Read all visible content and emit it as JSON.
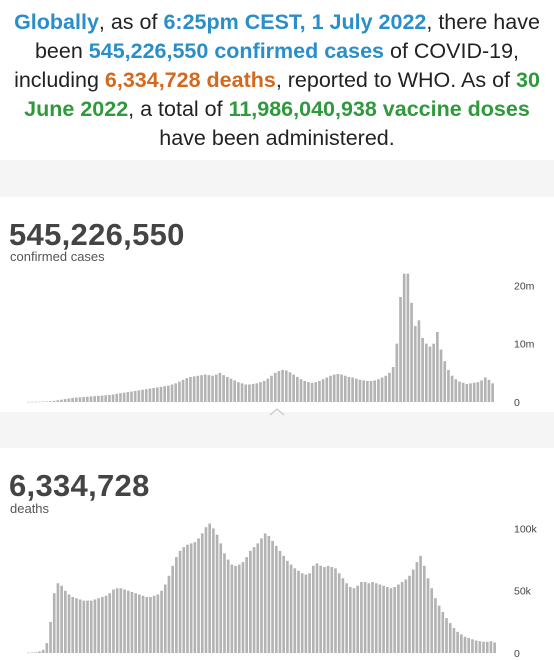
{
  "summary": {
    "t1": "Globally",
    "t2": ", as of ",
    "t3": "6:25pm CEST, 1 July 2022",
    "t4": ", there have been ",
    "t5": "545,226,550 confirmed cases",
    "t6": " of COVID-19, including ",
    "t7": "6,334,728 deaths",
    "t8": ", reported to WHO. As of ",
    "t9": "30 June 2022",
    "t10": ", a total of ",
    "t11": "11,986,040,938 vaccine doses",
    "t12": " have been administered."
  },
  "colors": {
    "blue": "#2a8ec9",
    "orange": "#d2691e",
    "green": "#2e9a3c",
    "bar": "#b3b3b3"
  },
  "chart_data": [
    {
      "type": "bar",
      "title": "545,226,550",
      "subtitle": "confirmed cases",
      "ylim": [
        0,
        24000000
      ],
      "y_ticks": [
        {
          "value": 0,
          "label": "0"
        },
        {
          "value": 10000000,
          "label": "10m"
        },
        {
          "value": 20000000,
          "label": "20m"
        }
      ],
      "values": [
        20000,
        30000,
        40000,
        60000,
        80000,
        100000,
        150000,
        200000,
        300000,
        400000,
        500000,
        600000,
        700000,
        750000,
        800000,
        850000,
        900000,
        950000,
        1000000,
        1050000,
        1100000,
        1150000,
        1200000,
        1300000,
        1400000,
        1500000,
        1600000,
        1700000,
        1800000,
        1900000,
        2000000,
        2100000,
        2200000,
        2300000,
        2400000,
        2500000,
        2600000,
        2700000,
        2800000,
        3000000,
        3200000,
        3500000,
        3800000,
        4100000,
        4300000,
        4400000,
        4500000,
        4600000,
        4700000,
        4600000,
        4500000,
        4700000,
        5000000,
        4600000,
        4300000,
        4000000,
        3700000,
        3400000,
        3200000,
        3000000,
        3000000,
        3100000,
        3200000,
        3400000,
        3600000,
        4000000,
        4500000,
        5000000,
        5300000,
        5500000,
        5400000,
        5100000,
        4700000,
        4300000,
        3900000,
        3600000,
        3400000,
        3300000,
        3400000,
        3600000,
        3900000,
        4200000,
        4500000,
        4700000,
        4800000,
        4700000,
        4500000,
        4300000,
        4200000,
        4000000,
        3800000,
        3700000,
        3600000,
        3600000,
        3700000,
        3900000,
        4200000,
        4500000,
        5000000,
        6000000,
        10000000,
        18000000,
        22000000,
        22000000,
        17000000,
        13000000,
        14000000,
        11000000,
        10000000,
        9500000,
        10000000,
        12000000,
        9000000,
        7000000,
        5500000,
        4500000,
        3900000,
        3500000,
        3300000,
        3100000,
        3200000,
        3300000,
        3400000,
        3700000,
        4200000,
        3800000,
        3200000
      ]
    },
    {
      "type": "bar",
      "title": "6,334,728",
      "subtitle": "deaths",
      "ylim": [
        0,
        110000
      ],
      "y_ticks": [
        {
          "value": 0,
          "label": "0"
        },
        {
          "value": 50000,
          "label": "50k"
        },
        {
          "value": 100000,
          "label": "100k"
        }
      ],
      "values": [
        200,
        400,
        600,
        1200,
        2500,
        8000,
        25000,
        48000,
        56000,
        54000,
        50000,
        47000,
        45000,
        44000,
        43000,
        42000,
        42000,
        42000,
        43000,
        44000,
        45000,
        46000,
        48000,
        51000,
        52000,
        52000,
        51000,
        50000,
        49000,
        48000,
        47000,
        46000,
        45000,
        45000,
        46000,
        47000,
        50000,
        55000,
        62000,
        70000,
        77000,
        82000,
        85000,
        87000,
        88000,
        89000,
        92000,
        96000,
        101000,
        104000,
        100000,
        95000,
        88000,
        80000,
        75000,
        71000,
        70000,
        71000,
        73000,
        77000,
        82000,
        85000,
        88000,
        92000,
        96000,
        94000,
        90000,
        86000,
        82000,
        78000,
        74000,
        71000,
        68000,
        66000,
        64000,
        63000,
        64000,
        70000,
        72000,
        70000,
        69000,
        70000,
        69000,
        68000,
        64000,
        60000,
        56000,
        53000,
        52000,
        54000,
        57000,
        57000,
        56000,
        57000,
        56000,
        55000,
        54000,
        53000,
        52000,
        53000,
        55000,
        57000,
        59000,
        62000,
        67000,
        73000,
        78000,
        70000,
        60000,
        52000,
        44000,
        38000,
        33000,
        28000,
        24000,
        20000,
        17000,
        15000,
        13000,
        12000,
        11000,
        10000,
        9500,
        9000,
        9000,
        9500,
        8500
      ]
    }
  ]
}
